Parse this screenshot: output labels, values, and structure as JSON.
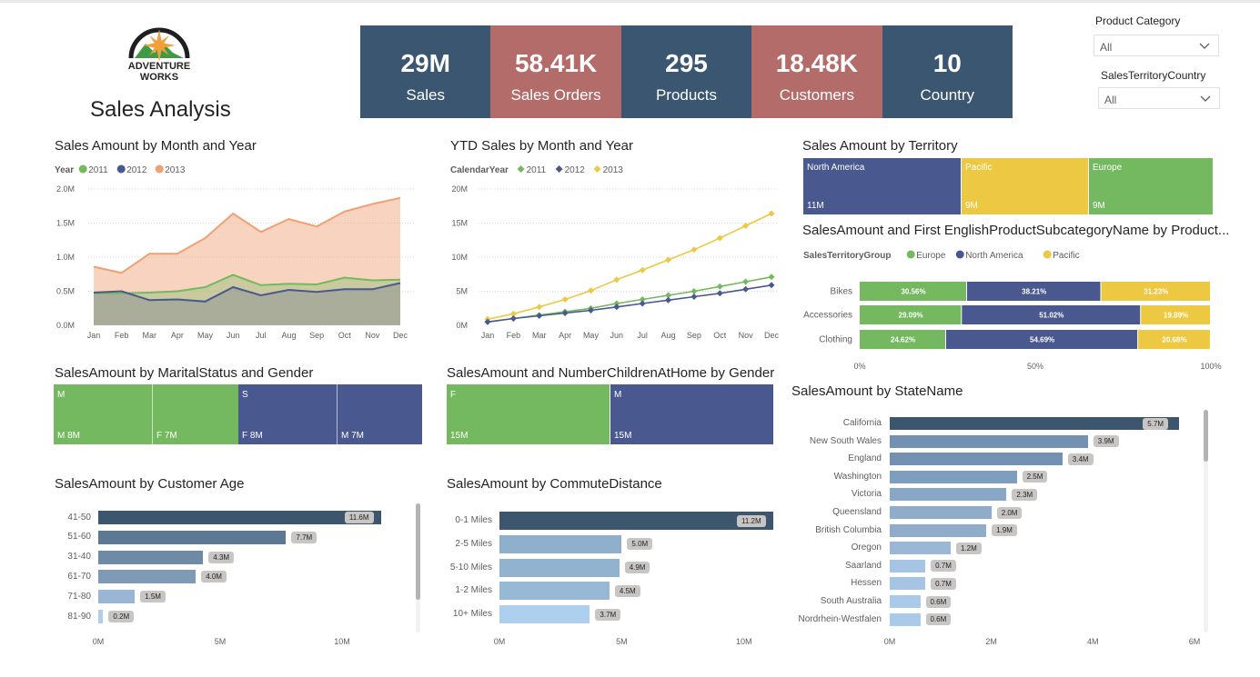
{
  "header": {
    "logo_line1": "ADVENTURE",
    "logo_line2": "WORKS",
    "report_title": "Sales Analysis"
  },
  "colors": {
    "kpi_blue": "#3b5670",
    "kpi_rose": "#b46c6a",
    "green": "#74b85f",
    "navy": "#4a5890",
    "yellow": "#edc843",
    "orange": "#f0a074",
    "bar_dark": "#3c566e",
    "bar_mid": "#6f8aa6",
    "bar_light": "#9ab6d4",
    "bar_lightest": "#aed0ee"
  },
  "kpis": [
    {
      "value": "29M",
      "label": "Sales",
      "color": "#3b5670"
    },
    {
      "value": "58.41K",
      "label": "Sales Orders",
      "color": "#b46c6a"
    },
    {
      "value": "295",
      "label": "Products",
      "color": "#3b5670"
    },
    {
      "value": "18.48K",
      "label": "Customers",
      "color": "#b46c6a"
    },
    {
      "value": "10",
      "label": "Country",
      "color": "#3b5670"
    }
  ],
  "slicers": [
    {
      "label": "Product Category",
      "value": "All",
      "icon": "chevron-down-icon"
    },
    {
      "label": "SalesTerritoryCountry",
      "value": "All",
      "icon": "chevron-down-icon"
    }
  ],
  "chart_data": [
    {
      "id": "sales_by_month",
      "type": "area",
      "title": "Sales Amount by Month and Year",
      "legend_title": "Year",
      "legend_position": "top-left",
      "x": [
        "Jan",
        "Feb",
        "Mar",
        "Apr",
        "May",
        "Jun",
        "Jul",
        "Aug",
        "Sep",
        "Oct",
        "Nov",
        "Dec"
      ],
      "y_ticks": [
        "0.0M",
        "0.5M",
        "1.0M",
        "1.5M",
        "2.0M"
      ],
      "ylim": [
        0,
        2.0
      ],
      "grid": true,
      "series": [
        {
          "name": "2011",
          "color": "#74b85f",
          "values": [
            0.47,
            0.47,
            0.48,
            0.5,
            0.56,
            0.74,
            0.59,
            0.61,
            0.6,
            0.7,
            0.66,
            0.67
          ]
        },
        {
          "name": "2012",
          "color": "#4a5890",
          "values": [
            0.48,
            0.5,
            0.37,
            0.38,
            0.35,
            0.56,
            0.44,
            0.52,
            0.49,
            0.53,
            0.53,
            0.62
          ]
        },
        {
          "name": "2013",
          "color": "#f0a074",
          "values": [
            0.86,
            0.77,
            1.05,
            1.05,
            1.28,
            1.64,
            1.37,
            1.56,
            1.45,
            1.67,
            1.78,
            1.87
          ]
        }
      ]
    },
    {
      "id": "ytd_sales",
      "type": "line",
      "title": "YTD Sales by Month and Year",
      "legend_title": "CalendarYear",
      "legend_position": "top-left",
      "x": [
        "Jan",
        "Feb",
        "Mar",
        "Apr",
        "May",
        "Jun",
        "Jul",
        "Aug",
        "Sep",
        "Oct",
        "Nov",
        "Dec"
      ],
      "y_ticks": [
        "0M",
        "5M",
        "10M",
        "15M",
        "20M"
      ],
      "ylim": [
        0,
        20
      ],
      "grid": true,
      "series": [
        {
          "name": "2011",
          "color": "#74b85f",
          "values": [
            0.5,
            1.0,
            1.5,
            2.0,
            2.5,
            3.2,
            3.8,
            4.4,
            5.0,
            5.7,
            6.4,
            7.1
          ]
        },
        {
          "name": "2012",
          "color": "#4a5890",
          "values": [
            0.5,
            1.0,
            1.4,
            1.8,
            2.2,
            2.7,
            3.2,
            3.7,
            4.2,
            4.7,
            5.3,
            5.9
          ]
        },
        {
          "name": "2013",
          "color": "#edc843",
          "values": [
            0.9,
            1.7,
            2.7,
            3.8,
            5.1,
            6.7,
            8.1,
            9.6,
            11.1,
            12.8,
            14.6,
            16.4
          ]
        }
      ]
    },
    {
      "id": "territory_treemap",
      "type": "treemap",
      "title": "Sales Amount by Territory",
      "items": [
        {
          "name": "North America",
          "label": "11M",
          "value": 11,
          "color": "#4a5890"
        },
        {
          "name": "Pacific",
          "label": "9M",
          "value": 9,
          "color": "#edc843"
        },
        {
          "name": "Europe",
          "label": "9M",
          "value": 9,
          "color": "#74b85f"
        }
      ]
    },
    {
      "id": "subcategory_stacked",
      "type": "bar",
      "stacked": "100%",
      "title": "SalesAmount and First EnglishProductSubcategoryName by Product...",
      "legend_title": "SalesTerritoryGroup",
      "legend_position": "top-left",
      "categories": [
        "Bikes",
        "Accessories",
        "Clothing"
      ],
      "x_ticks": [
        "0%",
        "50%",
        "100%"
      ],
      "series": [
        {
          "name": "Europe",
          "color": "#74b85f",
          "values": [
            30.56,
            29.09,
            24.62
          ],
          "labels": [
            "30.56%",
            "29.09%",
            "24.62%"
          ]
        },
        {
          "name": "North America",
          "color": "#4a5890",
          "values": [
            38.21,
            51.02,
            54.69
          ],
          "labels": [
            "38.21%",
            "51.02%",
            "54.69%"
          ]
        },
        {
          "name": "Pacific",
          "color": "#edc843",
          "values": [
            31.23,
            19.89,
            20.68
          ],
          "labels": [
            "31.23%",
            "19.89%",
            "20.68%"
          ]
        }
      ]
    },
    {
      "id": "marital_gender",
      "type": "treemap",
      "title": "SalesAmount by MaritalStatus and Gender",
      "groups": [
        {
          "name": "M",
          "color": "#74b85f",
          "children": [
            {
              "label": "M 8M",
              "value": 8
            },
            {
              "label": "F 7M",
              "value": 7
            }
          ]
        },
        {
          "name": "S",
          "color": "#4a5890",
          "children": [
            {
              "label": "F 8M",
              "value": 8
            },
            {
              "label": "M 7M",
              "value": 7
            }
          ]
        }
      ]
    },
    {
      "id": "children_gender",
      "type": "treemap",
      "title": "SalesAmount and NumberChildrenAtHome by Gender",
      "items": [
        {
          "name": "F",
          "label": "15M",
          "value": 15,
          "color": "#74b85f"
        },
        {
          "name": "M",
          "label": "15M",
          "value": 15,
          "color": "#4a5890"
        }
      ]
    },
    {
      "id": "customer_age",
      "type": "bar",
      "orientation": "horizontal",
      "title": "SalesAmount by Customer Age",
      "categories": [
        "41-50",
        "51-60",
        "31-40",
        "61-70",
        "71-80",
        "81-90"
      ],
      "values": [
        11.6,
        7.7,
        4.3,
        4.0,
        1.5,
        0.2
      ],
      "labels": [
        "11.6M",
        "7.7M",
        "4.3M",
        "4.0M",
        "1.5M",
        "0.2M"
      ],
      "colors": [
        "#3c566e",
        "#5d7894",
        "#6f8aa6",
        "#7f9ab6",
        "#9ab6d4",
        "#aed0ee"
      ],
      "x_ticks": [
        "0M",
        "5M",
        "10M"
      ],
      "xlim": [
        0,
        12.2
      ]
    },
    {
      "id": "commute_distance",
      "type": "bar",
      "orientation": "horizontal",
      "title": "SalesAmount by CommuteDistance",
      "categories": [
        "0-1 Miles",
        "2-5 Miles",
        "5-10 Miles",
        "1-2 Miles",
        "10+ Miles"
      ],
      "values": [
        11.2,
        5.0,
        4.9,
        4.5,
        3.7
      ],
      "labels": [
        "11.2M",
        "5.0M",
        "4.9M",
        "4.5M",
        "3.7M"
      ],
      "colors": [
        "#3c566e",
        "#8fb0cc",
        "#92b3cf",
        "#98b9d6",
        "#aed0ee"
      ],
      "x_ticks": [
        "0M",
        "5M",
        "10M"
      ],
      "xlim": [
        0,
        11.2
      ]
    },
    {
      "id": "state_name",
      "type": "bar",
      "orientation": "horizontal",
      "title": "SalesAmount by StateName",
      "categories": [
        "California",
        "New South Wales",
        "England",
        "Washington",
        "Victoria",
        "Queensland",
        "British Columbia",
        "Oregon",
        "Saarland",
        "Hessen",
        "South Australia",
        "Nordrhein-Westfalen"
      ],
      "values": [
        5.7,
        3.9,
        3.4,
        2.5,
        2.3,
        2.0,
        1.9,
        1.2,
        0.7,
        0.7,
        0.6,
        0.6
      ],
      "labels": [
        "5.7M",
        "3.9M",
        "3.4M",
        "2.5M",
        "2.3M",
        "2.0M",
        "1.9M",
        "1.2M",
        "0.7M",
        "0.7M",
        "0.6M",
        "0.6M"
      ],
      "colors": [
        "#3c566e",
        "#7391b0",
        "#7391b0",
        "#7f9dbd",
        "#88a6c5",
        "#8fadcb",
        "#8fadcb",
        "#9ab8d6",
        "#a6c5e4",
        "#a6c5e4",
        "#aacaea",
        "#aacaea"
      ],
      "x_ticks": [
        "0M",
        "2M",
        "4M",
        "6M"
      ],
      "xlim": [
        0,
        6.0
      ]
    }
  ]
}
